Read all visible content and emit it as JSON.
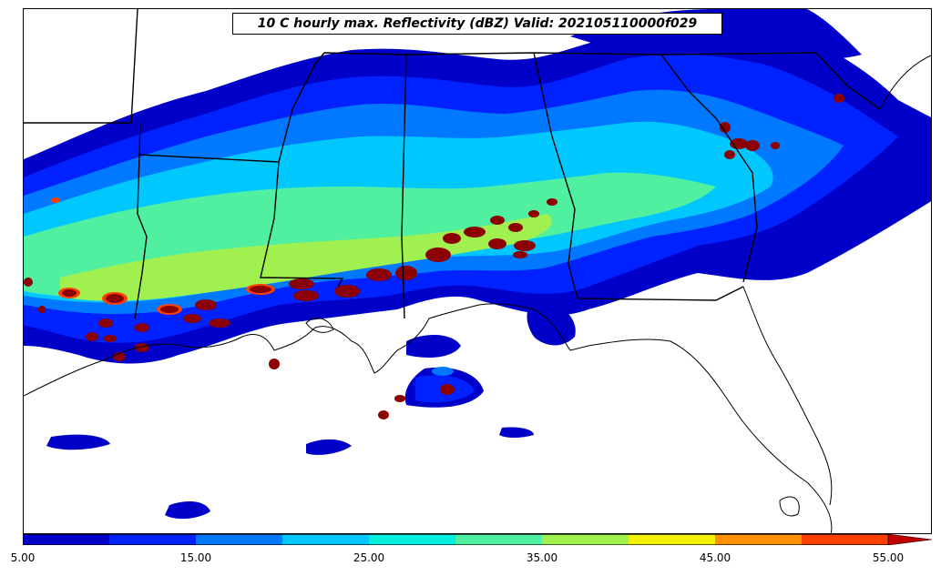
{
  "title": "10 C hourly max. Reflectivity (dBZ) Valid: 202105110000f029",
  "colorbar": {
    "min": 5,
    "max": 55,
    "extend": "max",
    "tick_labels": [
      "5.00",
      "15.00",
      "25.00",
      "35.00",
      "45.00",
      "55.00"
    ],
    "colors": [
      "#0000c8",
      "#0022ff",
      "#0078ff",
      "#00c8ff",
      "#00f0e0",
      "#50f0a0",
      "#a0f050",
      "#f0f000",
      "#ff9000",
      "#ff4000",
      "#c00000",
      "#8b0000"
    ]
  },
  "legend_colors": {
    "land": "#ffffff",
    "border": "#000000",
    "heavy_core": "#8b0000"
  }
}
